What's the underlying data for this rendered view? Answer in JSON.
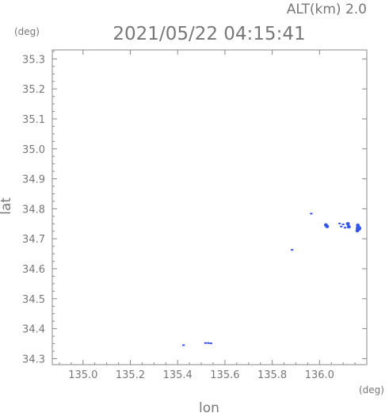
{
  "chart_data": {
    "type": "scatter",
    "title": "2021/05/22 04:15:41",
    "subtitle": "ALT(km) 2.0",
    "xlabel": "lon",
    "ylabel": "lat",
    "x_unit": "(deg)",
    "y_unit": "(deg)",
    "xlim": [
      134.87,
      136.2
    ],
    "ylim": [
      34.28,
      35.33
    ],
    "xticks": [
      135.0,
      135.2,
      135.4,
      135.6,
      135.8,
      136.0
    ],
    "xtick_labels": [
      "135.0",
      "135.2",
      "135.4",
      "135.6",
      "135.8",
      "136.0"
    ],
    "yticks": [
      34.3,
      34.4,
      34.5,
      34.6,
      34.7,
      34.8,
      34.9,
      35.0,
      35.1,
      35.2,
      35.3
    ],
    "ytick_labels": [
      "34.3",
      "34.4",
      "34.5",
      "34.6",
      "34.7",
      "34.8",
      "34.9",
      "35.0",
      "35.1",
      "35.2",
      "35.3"
    ],
    "grid": false,
    "marker_color": "#3355ee",
    "points": [
      {
        "x": 135.425,
        "y": 34.345,
        "size": "small"
      },
      {
        "x": 135.518,
        "y": 34.352,
        "size": "small"
      },
      {
        "x": 135.53,
        "y": 34.352,
        "size": "small"
      },
      {
        "x": 135.541,
        "y": 34.351,
        "size": "small"
      },
      {
        "x": 135.884,
        "y": 34.663,
        "size": "small"
      },
      {
        "x": 135.965,
        "y": 34.784,
        "size": "small"
      },
      {
        "x": 136.027,
        "y": 34.746,
        "size": "medium"
      },
      {
        "x": 136.032,
        "y": 34.741,
        "size": "medium"
      },
      {
        "x": 136.085,
        "y": 34.751,
        "size": "small"
      },
      {
        "x": 136.1,
        "y": 34.748,
        "size": "small"
      },
      {
        "x": 136.092,
        "y": 34.741,
        "size": "small"
      },
      {
        "x": 136.108,
        "y": 34.737,
        "size": "small"
      },
      {
        "x": 136.12,
        "y": 34.75,
        "size": "medium"
      },
      {
        "x": 136.124,
        "y": 34.74,
        "size": "medium"
      },
      {
        "x": 136.162,
        "y": 34.745,
        "size": "medium"
      },
      {
        "x": 136.165,
        "y": 34.735,
        "size": "large"
      },
      {
        "x": 136.16,
        "y": 34.727,
        "size": "medium"
      }
    ]
  }
}
